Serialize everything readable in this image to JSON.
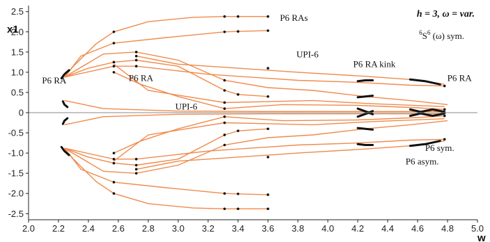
{
  "chart_data": {
    "type": "line",
    "xlabel": "w",
    "ylabel": "x1",
    "xlim": [
      2.0,
      5.0
    ],
    "ylim": [
      -2.65,
      2.65
    ],
    "x_ticks": [
      "2.0",
      "2.2",
      "2.4",
      "2.6",
      "2.8",
      "3.0",
      "3.2",
      "3.4",
      "3.6",
      "3.8",
      "4.0",
      "4.2",
      "4.4",
      "4.6",
      "4.8",
      "5.0"
    ],
    "y_ticks": [
      "2.5",
      "2.0",
      "1.5",
      "1.0",
      "0.5",
      "0",
      "-0.5",
      "-1.0",
      "-1.5",
      "-2.0",
      "-2.5"
    ],
    "grid": false,
    "curve_color": "#f08a4b",
    "stable_color": "#111111",
    "info_box": {
      "main": "h = 3, ω = var.",
      "sub_sup": "6",
      "sub_mid": "S",
      "sub_sup2": "6",
      "sub_rest": " (ω) sym."
    },
    "annotations": [
      {
        "text": "P6 RA",
        "x": 2.09,
        "y": 0.72
      },
      {
        "text": "P6 RA",
        "x": 2.67,
        "y": 0.78
      },
      {
        "text": "P6 RAs",
        "x": 3.68,
        "y": 2.27
      },
      {
        "text": "UPI-6",
        "x": 3.79,
        "y": 1.37
      },
      {
        "text": "P6 RA kink",
        "x": 4.17,
        "y": 1.13
      },
      {
        "text": "P6 RA",
        "x": 4.88,
        "y": 0.78
      },
      {
        "text": "UPI-6",
        "x": 2.98,
        "y": 0.08
      },
      {
        "text": "P6 sym.",
        "x": 4.65,
        "y": -0.95
      },
      {
        "text": "P6 asym.",
        "x": 4.52,
        "y": -1.28
      }
    ],
    "series": [
      {
        "points": [
          [
            2.24,
            0.88
          ],
          [
            2.3,
            1.15
          ],
          [
            2.45,
            1.7
          ],
          [
            2.57,
            2.0
          ],
          [
            2.8,
            2.25
          ],
          [
            3.1,
            2.36
          ],
          [
            3.31,
            2.38
          ],
          [
            3.4,
            2.38
          ],
          [
            3.6,
            2.38
          ]
        ]
      },
      {
        "points": [
          [
            2.24,
            0.88
          ],
          [
            2.35,
            1.4
          ],
          [
            2.57,
            1.72
          ],
          [
            2.9,
            1.85
          ],
          [
            3.31,
            2.0
          ],
          [
            3.4,
            2.01
          ],
          [
            3.6,
            2.03
          ]
        ]
      },
      {
        "points": [
          [
            2.24,
            0.88
          ],
          [
            2.5,
            1.45
          ],
          [
            2.72,
            1.5
          ],
          [
            3.0,
            1.3
          ],
          [
            3.31,
            0.8
          ],
          [
            3.6,
            0.62
          ],
          [
            3.9,
            0.55
          ],
          [
            4.25,
            0.4
          ],
          [
            4.55,
            0.3
          ],
          [
            4.8,
            0.2
          ]
        ]
      },
      {
        "points": [
          [
            2.24,
            0.88
          ],
          [
            2.4,
            1.1
          ],
          [
            2.57,
            1.25
          ],
          [
            2.72,
            1.3
          ],
          [
            3.0,
            1.15
          ],
          [
            3.31,
            0.55
          ],
          [
            3.4,
            0.45
          ],
          [
            3.6,
            0.4
          ]
        ]
      },
      {
        "points": [
          [
            2.24,
            0.88
          ],
          [
            2.57,
            1.15
          ],
          [
            2.72,
            1.15
          ],
          [
            3.2,
            0.95
          ],
          [
            3.8,
            0.8
          ],
          [
            4.2,
            0.75
          ],
          [
            4.55,
            0.68
          ],
          [
            4.78,
            0.66
          ]
        ]
      },
      {
        "points": [
          [
            2.57,
            1.0
          ],
          [
            2.75,
            0.7
          ],
          [
            3.0,
            0.4
          ],
          [
            3.31,
            0.1
          ],
          [
            3.7,
            0.2
          ],
          [
            4.2,
            0.18
          ],
          [
            4.6,
            0.12
          ],
          [
            4.78,
            0.08
          ]
        ]
      },
      {
        "points": [
          [
            2.57,
            1.2
          ],
          [
            2.8,
            0.55
          ],
          [
            3.31,
            0.25
          ],
          [
            3.9,
            0.3
          ],
          [
            4.3,
            0.22
          ],
          [
            4.78,
            0.15
          ]
        ]
      },
      {
        "points": [
          [
            2.72,
            1.4
          ],
          [
            3.0,
            1.2
          ],
          [
            3.4,
            1.1
          ],
          [
            3.8,
            1.0
          ],
          [
            4.25,
            0.9
          ],
          [
            4.55,
            0.82
          ],
          [
            4.78,
            0.7
          ]
        ]
      },
      {
        "points": [
          [
            2.24,
            0.3
          ],
          [
            2.5,
            0.1
          ],
          [
            3.0,
            0.04
          ],
          [
            3.6,
            0.03
          ],
          [
            4.2,
            0.03
          ],
          [
            4.78,
            0.03
          ]
        ]
      },
      {
        "points": [
          [
            2.24,
            -0.88
          ],
          [
            2.3,
            -1.15
          ],
          [
            2.45,
            -1.7
          ],
          [
            2.57,
            -2.0
          ],
          [
            2.8,
            -2.25
          ],
          [
            3.1,
            -2.36
          ],
          [
            3.31,
            -2.38
          ],
          [
            3.4,
            -2.38
          ],
          [
            3.6,
            -2.38
          ]
        ]
      },
      {
        "points": [
          [
            2.24,
            -0.88
          ],
          [
            2.35,
            -1.4
          ],
          [
            2.57,
            -1.72
          ],
          [
            2.9,
            -1.85
          ],
          [
            3.31,
            -2.0
          ],
          [
            3.4,
            -2.01
          ],
          [
            3.6,
            -2.03
          ]
        ]
      },
      {
        "points": [
          [
            2.24,
            -0.88
          ],
          [
            2.5,
            -1.45
          ],
          [
            2.72,
            -1.5
          ],
          [
            3.0,
            -1.3
          ],
          [
            3.31,
            -0.8
          ],
          [
            3.6,
            -0.62
          ],
          [
            3.9,
            -0.55
          ],
          [
            4.25,
            -0.4
          ],
          [
            4.55,
            -0.3
          ],
          [
            4.8,
            -0.2
          ]
        ]
      },
      {
        "points": [
          [
            2.24,
            -0.88
          ],
          [
            2.4,
            -1.1
          ],
          [
            2.57,
            -1.25
          ],
          [
            2.72,
            -1.3
          ],
          [
            3.0,
            -1.15
          ],
          [
            3.31,
            -0.55
          ],
          [
            3.4,
            -0.45
          ],
          [
            3.6,
            -0.4
          ]
        ]
      },
      {
        "points": [
          [
            2.24,
            -0.88
          ],
          [
            2.57,
            -1.15
          ],
          [
            2.72,
            -1.15
          ],
          [
            3.2,
            -0.95
          ],
          [
            3.8,
            -0.8
          ],
          [
            4.2,
            -0.75
          ],
          [
            4.55,
            -0.68
          ],
          [
            4.78,
            -0.66
          ]
        ]
      },
      {
        "points": [
          [
            2.57,
            -1.0
          ],
          [
            2.75,
            -0.7
          ],
          [
            3.0,
            -0.4
          ],
          [
            3.31,
            -0.1
          ],
          [
            3.7,
            -0.2
          ],
          [
            4.2,
            -0.18
          ],
          [
            4.6,
            -0.12
          ],
          [
            4.78,
            -0.08
          ]
        ]
      },
      {
        "points": [
          [
            2.57,
            -1.2
          ],
          [
            2.8,
            -0.55
          ],
          [
            3.31,
            -0.25
          ],
          [
            3.9,
            -0.3
          ],
          [
            4.3,
            -0.22
          ],
          [
            4.78,
            -0.15
          ]
        ]
      },
      {
        "points": [
          [
            2.72,
            -1.4
          ],
          [
            3.0,
            -1.2
          ],
          [
            3.4,
            -1.1
          ],
          [
            3.8,
            -1.0
          ],
          [
            4.25,
            -0.9
          ],
          [
            4.55,
            -0.82
          ],
          [
            4.78,
            -0.7
          ]
        ]
      },
      {
        "points": [
          [
            2.24,
            -0.3
          ],
          [
            2.5,
            -0.1
          ],
          [
            3.0,
            -0.04
          ],
          [
            3.6,
            -0.03
          ],
          [
            4.2,
            -0.03
          ],
          [
            4.78,
            -0.03
          ]
        ]
      }
    ],
    "stable_branches": [
      {
        "points": [
          [
            2.22,
            0.85
          ],
          [
            2.24,
            0.95
          ],
          [
            2.27,
            1.05
          ]
        ]
      },
      {
        "points": [
          [
            2.22,
            -0.85
          ],
          [
            2.24,
            -0.95
          ],
          [
            2.27,
            -1.05
          ]
        ]
      },
      {
        "points": [
          [
            2.23,
            0.28
          ],
          [
            2.24,
            0.2
          ],
          [
            2.26,
            0.14
          ]
        ]
      },
      {
        "points": [
          [
            2.23,
            -0.28
          ],
          [
            2.24,
            -0.2
          ],
          [
            2.26,
            -0.14
          ]
        ]
      },
      {
        "points": [
          [
            4.2,
            0.38
          ],
          [
            4.25,
            0.4
          ],
          [
            4.3,
            0.42
          ]
        ]
      },
      {
        "points": [
          [
            4.2,
            -0.38
          ],
          [
            4.25,
            -0.4
          ],
          [
            4.3,
            -0.42
          ]
        ]
      },
      {
        "points": [
          [
            4.2,
            0.78
          ],
          [
            4.25,
            0.8
          ],
          [
            4.3,
            0.8
          ]
        ]
      },
      {
        "points": [
          [
            4.2,
            -0.78
          ],
          [
            4.25,
            -0.8
          ],
          [
            4.3,
            -0.8
          ]
        ]
      },
      {
        "points": [
          [
            4.2,
            0.1
          ],
          [
            4.26,
            0.02
          ],
          [
            4.3,
            -0.04
          ]
        ]
      },
      {
        "points": [
          [
            4.2,
            -0.1
          ],
          [
            4.26,
            -0.02
          ],
          [
            4.3,
            0.04
          ]
        ]
      },
      {
        "points": [
          [
            4.55,
            0.82
          ],
          [
            4.65,
            0.78
          ],
          [
            4.75,
            0.7
          ]
        ]
      },
      {
        "points": [
          [
            4.55,
            -0.82
          ],
          [
            4.65,
            -0.78
          ],
          [
            4.75,
            -0.7
          ]
        ]
      },
      {
        "points": [
          [
            4.55,
            0.08
          ],
          [
            4.62,
            0.02
          ],
          [
            4.7,
            0.08
          ],
          [
            4.78,
            0.02
          ]
        ]
      },
      {
        "points": [
          [
            4.55,
            -0.08
          ],
          [
            4.62,
            -0.02
          ],
          [
            4.7,
            -0.08
          ],
          [
            4.78,
            -0.02
          ]
        ]
      }
    ],
    "bifurcation_points": [
      [
        2.57,
        2.0
      ],
      [
        2.57,
        1.72
      ],
      [
        2.57,
        1.25
      ],
      [
        2.57,
        1.15
      ],
      [
        2.57,
        1.0
      ],
      [
        2.72,
        1.5
      ],
      [
        2.72,
        1.3
      ],
      [
        2.72,
        1.15
      ],
      [
        2.72,
        1.4
      ],
      [
        3.31,
        2.38
      ],
      [
        3.4,
        2.38
      ],
      [
        3.31,
        2.0
      ],
      [
        3.4,
        2.01
      ],
      [
        3.31,
        0.8
      ],
      [
        3.31,
        0.55
      ],
      [
        3.4,
        0.45
      ],
      [
        3.31,
        0.25
      ],
      [
        3.31,
        0.1
      ],
      [
        3.6,
        2.38
      ],
      [
        3.6,
        2.03
      ],
      [
        3.6,
        0.4
      ],
      [
        3.6,
        1.1
      ],
      [
        4.78,
        0.66
      ],
      [
        4.78,
        0.08
      ],
      [
        2.57,
        -2.0
      ],
      [
        2.57,
        -1.72
      ],
      [
        2.57,
        -1.25
      ],
      [
        2.57,
        -1.15
      ],
      [
        2.57,
        -1.0
      ],
      [
        2.72,
        -1.5
      ],
      [
        2.72,
        -1.3
      ],
      [
        2.72,
        -1.15
      ],
      [
        2.72,
        -1.4
      ],
      [
        3.31,
        -2.38
      ],
      [
        3.4,
        -2.38
      ],
      [
        3.31,
        -2.0
      ],
      [
        3.4,
        -2.01
      ],
      [
        3.31,
        -0.8
      ],
      [
        3.31,
        -0.55
      ],
      [
        3.4,
        -0.45
      ],
      [
        3.31,
        -0.25
      ],
      [
        3.31,
        -0.1
      ],
      [
        3.6,
        -2.38
      ],
      [
        3.6,
        -2.03
      ],
      [
        3.6,
        -0.4
      ],
      [
        3.6,
        -1.1
      ],
      [
        4.78,
        -0.66
      ],
      [
        4.78,
        -0.08
      ]
    ]
  }
}
